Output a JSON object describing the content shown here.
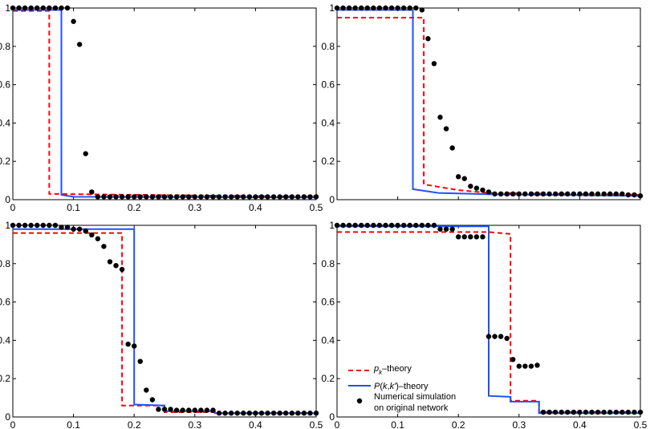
{
  "chart_data": [
    {
      "type": "line",
      "panel": "top-left",
      "xlim": [
        0,
        0.5
      ],
      "ylim": [
        0,
        1
      ],
      "xticks": [
        "0",
        "0.1",
        "0.2",
        "0.3",
        "0.4",
        "0.5"
      ],
      "yticks": [
        "0",
        "0.2",
        "0.4",
        "0.6",
        "0.8",
        "1"
      ],
      "series": [
        {
          "name": "pk_theory",
          "x": [
            0,
            0.06,
            0.06,
            0.5
          ],
          "y": [
            0.985,
            0.985,
            0.03,
            0.015
          ]
        },
        {
          "name": "pkk_theory",
          "x": [
            0,
            0.08,
            0.08,
            0.1,
            0.5
          ],
          "y": [
            0.99,
            0.99,
            0.025,
            0.015,
            0.012
          ]
        },
        {
          "name": "simulation",
          "x": [
            0,
            0.01,
            0.02,
            0.03,
            0.04,
            0.05,
            0.06,
            0.07,
            0.08,
            0.09,
            0.1,
            0.11,
            0.12,
            0.13,
            0.14,
            0.15,
            0.16,
            0.17,
            0.18,
            0.19,
            0.2,
            0.21,
            0.22,
            0.23,
            0.24,
            0.25,
            0.26,
            0.27,
            0.28,
            0.29,
            0.3,
            0.31,
            0.32,
            0.33,
            0.34,
            0.35,
            0.36,
            0.37,
            0.38,
            0.39,
            0.4,
            0.41,
            0.42,
            0.43,
            0.44,
            0.45,
            0.46,
            0.47,
            0.48,
            0.49,
            0.5
          ],
          "y": [
            1,
            1,
            1,
            1,
            1,
            1,
            1,
            1,
            1,
            1,
            0.93,
            0.81,
            0.24,
            0.04,
            0.015,
            0.015,
            0.015,
            0.015,
            0.015,
            0.015,
            0.015,
            0.015,
            0.015,
            0.015,
            0.015,
            0.015,
            0.015,
            0.015,
            0.015,
            0.015,
            0.015,
            0.015,
            0.015,
            0.015,
            0.015,
            0.015,
            0.015,
            0.015,
            0.015,
            0.015,
            0.015,
            0.015,
            0.015,
            0.015,
            0.015,
            0.015,
            0.015,
            0.015,
            0.015,
            0.015,
            0.015
          ]
        }
      ]
    },
    {
      "type": "line",
      "panel": "top-right",
      "xlim": [
        0,
        0.5
      ],
      "ylim": [
        0,
        1
      ],
      "xticks": [],
      "yticks": [
        "0",
        "0.2",
        "0.4",
        "0.6",
        "0.8",
        "1"
      ],
      "series": [
        {
          "name": "pk_theory",
          "x": [
            0,
            0.143,
            0.143,
            0.2,
            0.25,
            0.5
          ],
          "y": [
            0.95,
            0.95,
            0.08,
            0.05,
            0.035,
            0.025
          ]
        },
        {
          "name": "pkk_theory",
          "x": [
            0,
            0.125,
            0.125,
            0.167,
            0.25,
            0.5
          ],
          "y": [
            0.99,
            0.99,
            0.055,
            0.035,
            0.028,
            0.02
          ]
        },
        {
          "name": "simulation",
          "x": [
            0,
            0.01,
            0.02,
            0.03,
            0.04,
            0.05,
            0.06,
            0.07,
            0.08,
            0.09,
            0.1,
            0.11,
            0.12,
            0.13,
            0.14,
            0.15,
            0.16,
            0.17,
            0.18,
            0.19,
            0.2,
            0.21,
            0.22,
            0.23,
            0.24,
            0.25,
            0.26,
            0.27,
            0.28,
            0.29,
            0.3,
            0.31,
            0.32,
            0.33,
            0.34,
            0.35,
            0.36,
            0.37,
            0.38,
            0.39,
            0.4,
            0.41,
            0.42,
            0.43,
            0.44,
            0.45,
            0.46,
            0.47,
            0.48,
            0.49,
            0.5
          ],
          "y": [
            1,
            1,
            1,
            1,
            1,
            1,
            1,
            1,
            1,
            1,
            1,
            1,
            1,
            1,
            0.99,
            0.84,
            0.71,
            0.43,
            0.37,
            0.27,
            0.12,
            0.11,
            0.07,
            0.06,
            0.05,
            0.04,
            0.03,
            0.03,
            0.03,
            0.03,
            0.03,
            0.03,
            0.03,
            0.03,
            0.03,
            0.03,
            0.03,
            0.03,
            0.03,
            0.03,
            0.03,
            0.03,
            0.03,
            0.03,
            0.03,
            0.03,
            0.03,
            0.03,
            0.025,
            0.025,
            0.02
          ]
        }
      ]
    },
    {
      "type": "line",
      "panel": "bottom-left",
      "xlim": [
        0,
        0.5
      ],
      "ylim": [
        0,
        1
      ],
      "xticks": [
        "0",
        "0.1",
        "0.2",
        "0.3",
        "0.4",
        "0.5"
      ],
      "yticks": [
        "0",
        "0.2",
        "0.4",
        "0.6",
        "0.8",
        "1"
      ],
      "series": [
        {
          "name": "pk_theory",
          "x": [
            0,
            0.1,
            0.17,
            0.18,
            0.18,
            0.25,
            0.25,
            0.333,
            0.333,
            0.5
          ],
          "y": [
            0.96,
            0.96,
            0.96,
            0.96,
            0.06,
            0.06,
            0.025,
            0.025,
            0.02,
            0.02
          ]
        },
        {
          "name": "pkk_theory",
          "x": [
            0,
            0.2,
            0.2,
            0.25,
            0.25,
            0.333,
            0.333,
            0.5
          ],
          "y": [
            0.98,
            0.98,
            0.065,
            0.06,
            0.03,
            0.03,
            0.02,
            0.02
          ]
        },
        {
          "name": "simulation",
          "x": [
            0,
            0.01,
            0.02,
            0.03,
            0.04,
            0.05,
            0.06,
            0.07,
            0.08,
            0.09,
            0.1,
            0.11,
            0.12,
            0.13,
            0.14,
            0.15,
            0.16,
            0.17,
            0.18,
            0.19,
            0.2,
            0.21,
            0.22,
            0.23,
            0.24,
            0.25,
            0.26,
            0.27,
            0.28,
            0.29,
            0.3,
            0.31,
            0.32,
            0.33,
            0.34,
            0.35,
            0.36,
            0.37,
            0.38,
            0.39,
            0.4,
            0.41,
            0.42,
            0.43,
            0.44,
            0.45,
            0.46,
            0.47,
            0.48,
            0.49,
            0.5
          ],
          "y": [
            1,
            1,
            1,
            1,
            1,
            1,
            1,
            1,
            0.99,
            0.99,
            0.98,
            0.98,
            0.97,
            0.95,
            0.93,
            0.89,
            0.81,
            0.79,
            0.77,
            0.38,
            0.37,
            0.29,
            0.14,
            0.09,
            0.04,
            0.04,
            0.04,
            0.035,
            0.035,
            0.035,
            0.035,
            0.035,
            0.035,
            0.035,
            0.02,
            0.02,
            0.02,
            0.02,
            0.02,
            0.02,
            0.02,
            0.02,
            0.02,
            0.02,
            0.02,
            0.02,
            0.02,
            0.02,
            0.02,
            0.02,
            0.02
          ]
        }
      ]
    },
    {
      "type": "line",
      "panel": "bottom-right",
      "xlim": [
        0,
        0.5
      ],
      "ylim": [
        0,
        1
      ],
      "xticks": [
        "0",
        "0.1",
        "0.2",
        "0.3",
        "0.4",
        "0.5"
      ],
      "yticks": [
        "0",
        "0.2",
        "0.4",
        "0.6",
        "0.8",
        "1"
      ],
      "series": [
        {
          "name": "pk_theory",
          "x": [
            0,
            0.25,
            0.286,
            0.286,
            0.333,
            0.333,
            0.5
          ],
          "y": [
            0.965,
            0.965,
            0.955,
            0.085,
            0.085,
            0.025,
            0.025
          ]
        },
        {
          "name": "pkk_theory",
          "x": [
            0,
            0.25,
            0.25,
            0.286,
            0.286,
            0.333,
            0.333,
            0.5
          ],
          "y": [
            0.995,
            0.995,
            0.11,
            0.105,
            0.08,
            0.08,
            0.02,
            0.02
          ]
        },
        {
          "name": "simulation",
          "x": [
            0,
            0.01,
            0.02,
            0.03,
            0.04,
            0.05,
            0.06,
            0.07,
            0.08,
            0.09,
            0.1,
            0.11,
            0.12,
            0.13,
            0.14,
            0.15,
            0.16,
            0.17,
            0.18,
            0.19,
            0.2,
            0.21,
            0.22,
            0.23,
            0.24,
            0.25,
            0.26,
            0.27,
            0.28,
            0.29,
            0.3,
            0.31,
            0.32,
            0.33,
            0.34,
            0.35,
            0.36,
            0.37,
            0.38,
            0.39,
            0.4,
            0.41,
            0.42,
            0.43,
            0.44,
            0.45,
            0.46,
            0.47,
            0.48,
            0.49,
            0.5
          ],
          "y": [
            1,
            1,
            1,
            1,
            1,
            1,
            1,
            1,
            1,
            1,
            1,
            1,
            1,
            1,
            1,
            1,
            1,
            0.98,
            0.98,
            0.98,
            0.94,
            0.94,
            0.94,
            0.94,
            0.94,
            0.42,
            0.42,
            0.42,
            0.41,
            0.3,
            0.265,
            0.265,
            0.265,
            0.27,
            0.025,
            0.025,
            0.025,
            0.025,
            0.025,
            0.025,
            0.025,
            0.025,
            0.025,
            0.025,
            0.025,
            0.025,
            0.025,
            0.025,
            0.025,
            0.025,
            0.025
          ]
        }
      ]
    }
  ],
  "legend": {
    "placement": "bottom-left of bottom-right panel",
    "pk_symbol": "p",
    "pk_subscript": "k",
    "pk_suffix": "–theory",
    "pkk_symbol": "P",
    "pkk_args_open": "(",
    "pkk_k": "k",
    "pkk_comma": ",",
    "pkk_kprime": "k'",
    "pkk_args_close": ")",
    "pkk_suffix": "–theory",
    "sim_line1": "Numerical simulation",
    "sim_line2": "on original network"
  },
  "colors": {
    "pk_theory": "#ff0000",
    "pkk_theory": "#2050ff",
    "simulation": "#000000"
  }
}
